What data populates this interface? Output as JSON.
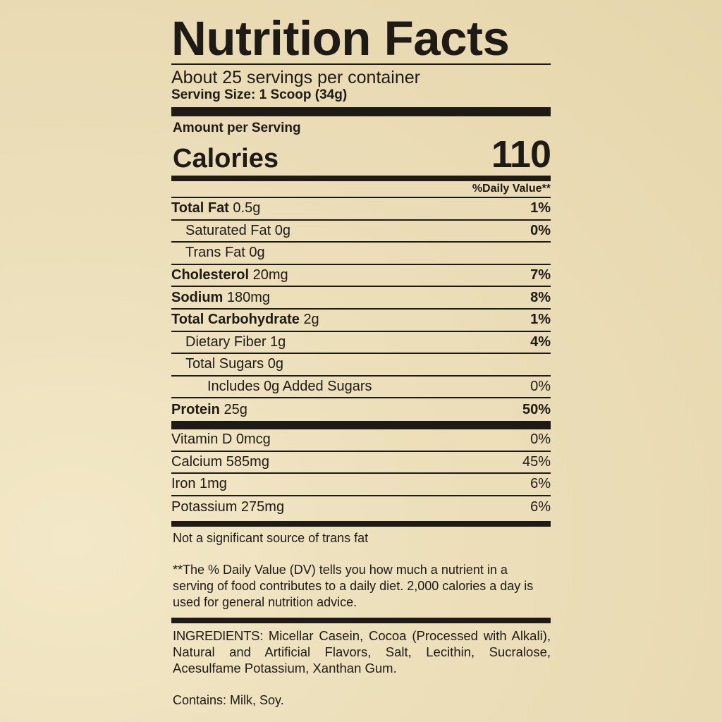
{
  "title": "Nutrition Facts",
  "servings": "About 25 servings per container",
  "serving_size": "Serving Size: 1 Scoop (34g)",
  "amount_per_serving": "Amount per Serving",
  "calories": {
    "label": "Calories",
    "value": "110"
  },
  "dv_header": "%Daily Value**",
  "nutrients": [
    {
      "name": "Total Fat",
      "amount": "0.5g",
      "dv": "1%",
      "bold": true,
      "indent": 0
    },
    {
      "name": "Saturated Fat",
      "amount": "0g",
      "dv": "0%",
      "bold": false,
      "indent": 1,
      "dv_bold": true
    },
    {
      "name": "Trans Fat",
      "amount": "0g",
      "dv": "",
      "bold": false,
      "indent": 1
    },
    {
      "name": "Cholesterol",
      "amount": "20mg",
      "dv": "7%",
      "bold": true,
      "indent": 0
    },
    {
      "name": "Sodium",
      "amount": "180mg",
      "dv": "8%",
      "bold": true,
      "indent": 0
    },
    {
      "name": "Total Carbohydrate",
      "amount": "2g",
      "dv": "1%",
      "bold": true,
      "indent": 0
    },
    {
      "name": "Dietary Fiber",
      "amount": "1g",
      "dv": "4%",
      "bold": false,
      "indent": 1,
      "dv_bold": true
    },
    {
      "name": "Total Sugars",
      "amount": "0g",
      "dv": "",
      "bold": false,
      "indent": 1
    },
    {
      "name": "Includes 0g Added Sugars",
      "amount": "",
      "dv": "0%",
      "bold": false,
      "indent": 2
    },
    {
      "name": "Protein",
      "amount": "25g",
      "dv": "50%",
      "bold": true,
      "indent": 0
    }
  ],
  "vitamins": [
    {
      "name": "Vitamin D 0mcg",
      "dv": "0%"
    },
    {
      "name": "Calcium 585mg",
      "dv": "45%"
    },
    {
      "name": "Iron 1mg",
      "dv": "6%"
    },
    {
      "name": "Potassium 275mg",
      "dv": "6%"
    }
  ],
  "trans_note": "Not a significant source of trans fat",
  "dv_note": "**The % Daily Value (DV) tells you how much a nutrient in a serving of food contributes to a daily diet. 2,000 calories a day is used for general nutrition advice.",
  "ingredients_label": "INGREDIENTS:",
  "ingredients": "Micellar Casein, Cocoa (Processed with Alkali), Natural and Artificial Flavors, Salt, Lecithin, Sucralose, Acesulfame Potassium, Xanthan Gum.",
  "contains": "Contains: Milk, Soy."
}
